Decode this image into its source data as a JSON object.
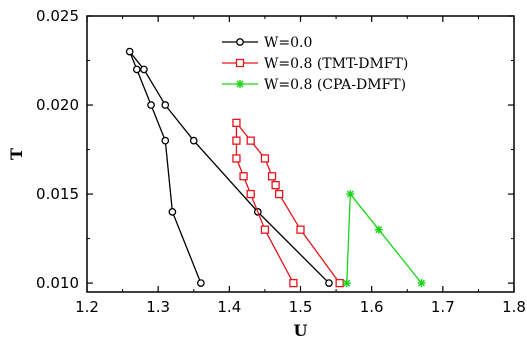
{
  "chart_data": {
    "type": "line",
    "xlabel": "U",
    "ylabel": "T",
    "xlim": [
      1.2,
      1.8
    ],
    "ylim": [
      0.0095,
      0.025
    ],
    "xticks": [
      "1.2",
      "1.3",
      "1.4",
      "1.5",
      "1.6",
      "1.7",
      "1.8"
    ],
    "yticks": [
      "0.010",
      "0.015",
      "0.020",
      "0.025"
    ],
    "xtick_values": [
      1.2,
      1.3,
      1.4,
      1.5,
      1.6,
      1.7,
      1.8
    ],
    "ytick_values": [
      0.01,
      0.015,
      0.02,
      0.025
    ],
    "grid": false,
    "legend_position": "top-center",
    "series": [
      {
        "name": "W=0.0",
        "color": "#000000",
        "marker": "circle",
        "x": [
          1.36,
          1.32,
          1.31,
          1.29,
          1.27,
          1.26,
          1.28,
          1.31,
          1.35,
          1.44,
          1.54
        ],
        "y": [
          0.01,
          0.014,
          0.018,
          0.02,
          0.022,
          0.023,
          0.022,
          0.02,
          0.018,
          0.014,
          0.01
        ]
      },
      {
        "name": "W=0.8 (TMT-DMFT)",
        "color": "#e8121b",
        "marker": "square",
        "x": [
          1.49,
          1.45,
          1.43,
          1.42,
          1.41,
          1.41,
          1.41,
          1.43,
          1.45,
          1.46,
          1.465,
          1.47,
          1.5,
          1.555
        ],
        "y": [
          0.01,
          0.013,
          0.015,
          0.016,
          0.017,
          0.018,
          0.019,
          0.018,
          0.017,
          0.016,
          0.0155,
          0.015,
          0.013,
          0.01
        ]
      },
      {
        "name": "W=0.8 (CPA-DMFT)",
        "color": "#16d616",
        "marker": "asterisk",
        "x": [
          1.565,
          1.57,
          1.61,
          1.67
        ],
        "y": [
          0.01,
          0.015,
          0.013,
          0.01
        ]
      }
    ]
  }
}
